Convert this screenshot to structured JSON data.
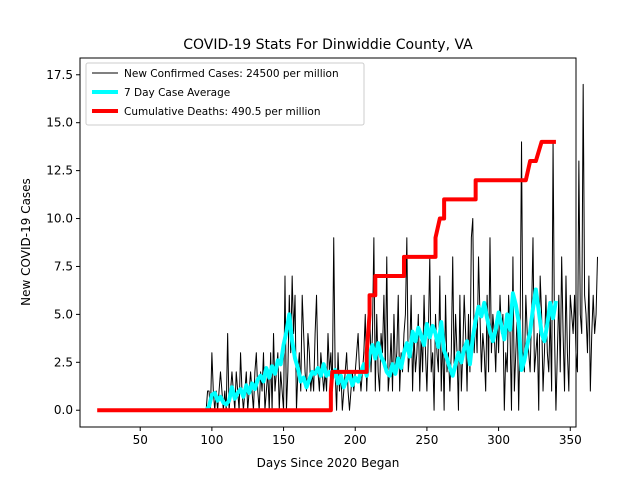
{
  "chart_data": {
    "type": "line",
    "title": "COVID-19 Stats For Dinwiddie County, VA",
    "xlabel": "Days Since 2020 Began",
    "ylabel": "New COVID-19 Cases",
    "xlim": [
      8,
      354
    ],
    "ylim": [
      -0.875,
      18.375
    ],
    "xticks": [
      50,
      100,
      150,
      200,
      250,
      300,
      350
    ],
    "yticks": [
      0.0,
      2.5,
      5.0,
      7.5,
      10.0,
      12.5,
      15.0,
      17.5
    ],
    "ytick_labels": [
      "0.0",
      "2.5",
      "5.0",
      "7.5",
      "10.0",
      "12.5",
      "15.0",
      "17.5"
    ],
    "grid": false,
    "legend_position": "top-left",
    "series": [
      {
        "name": "New Confirmed Cases: 24500 per million",
        "color": "#000000",
        "line_width": 1,
        "x_start": 96,
        "values": [
          0,
          1,
          1,
          0,
          3,
          1,
          0,
          1,
          0,
          1,
          2,
          1,
          0,
          1,
          0,
          4,
          0,
          1,
          2,
          1,
          0,
          2,
          1,
          0,
          3,
          1,
          0,
          1,
          2,
          0,
          1,
          2,
          1,
          0,
          2,
          3,
          1,
          0,
          2,
          1,
          3,
          0,
          1,
          2,
          0,
          3,
          0,
          4,
          1,
          2,
          3,
          0,
          2,
          1,
          0,
          7,
          0,
          2,
          6,
          3,
          7,
          4,
          6,
          0,
          2,
          3,
          1,
          6,
          4,
          2,
          1,
          4,
          3,
          1,
          2,
          1,
          4,
          6,
          2,
          1,
          3,
          2,
          1,
          2,
          1,
          4,
          2,
          3,
          1,
          9,
          2,
          0,
          3,
          1,
          2,
          0,
          1,
          2,
          3,
          1,
          0,
          1,
          2,
          1,
          2,
          3,
          4,
          2,
          1,
          2,
          3,
          5,
          1,
          3,
          6,
          2,
          4,
          9,
          1,
          5,
          2,
          1,
          4,
          3,
          6,
          2,
          8,
          1,
          2,
          4,
          1,
          5,
          2,
          3,
          6,
          1,
          3,
          2,
          4,
          5,
          9,
          2,
          3,
          6,
          1,
          4,
          2,
          3,
          5,
          1,
          4,
          2,
          6,
          3,
          1,
          4,
          8,
          2,
          3,
          0,
          5,
          3,
          2,
          7,
          1,
          4,
          0,
          6,
          2,
          3,
          1,
          3,
          8,
          2,
          5,
          3,
          0,
          6,
          1,
          3,
          6,
          4,
          1,
          5,
          2,
          9,
          10,
          3,
          5,
          3,
          8,
          5,
          2,
          4,
          3,
          1,
          6,
          2,
          9,
          3,
          5,
          4,
          2,
          5,
          3,
          6,
          4,
          5,
          0,
          3,
          2,
          6,
          4,
          0,
          8,
          1,
          3,
          5,
          0,
          4,
          14,
          3,
          2,
          6,
          4,
          3,
          2,
          5,
          9,
          2,
          3,
          4,
          0,
          7,
          5,
          1,
          3,
          6,
          3,
          2,
          5,
          1,
          14,
          4,
          0,
          3,
          6,
          2,
          8,
          4,
          1,
          7,
          3,
          1,
          6,
          5,
          4,
          6,
          3,
          2,
          13,
          5,
          4,
          17,
          6,
          5,
          3,
          7,
          1,
          4,
          6,
          4,
          5,
          8
        ]
      },
      {
        "name": "7 Day Case Average",
        "color": "#00ffff",
        "line_width": 4,
        "x": [
          96,
          98,
          100,
          102,
          104,
          106,
          108,
          110,
          112,
          114,
          116,
          118,
          120,
          122,
          124,
          126,
          128,
          130,
          132,
          134,
          136,
          138,
          140,
          142,
          144,
          146,
          148,
          150,
          152,
          154,
          156,
          158,
          160,
          162,
          164,
          166,
          168,
          170,
          172,
          174,
          176,
          178,
          180,
          182,
          184,
          186,
          188,
          190,
          192,
          194,
          196,
          198,
          200,
          202,
          204,
          206,
          208,
          210,
          212,
          214,
          216,
          218,
          220,
          222,
          224,
          226,
          228,
          230,
          232,
          234,
          236,
          238,
          240,
          242,
          244,
          246,
          248,
          250,
          252,
          254,
          256,
          258,
          260,
          262,
          264,
          266,
          268,
          270,
          272,
          274,
          276,
          278,
          280,
          282,
          284,
          286,
          288,
          290,
          292,
          294,
          296,
          298,
          300,
          302,
          304,
          306,
          308,
          310,
          312,
          314,
          316,
          318,
          320,
          322,
          324,
          326,
          328,
          330,
          332,
          334,
          336,
          338,
          340
        ],
        "values": [
          0,
          0.2,
          0.8,
          0.9,
          0.5,
          0.7,
          0.4,
          0.3,
          0.5,
          1.2,
          0.6,
          0.9,
          1.1,
          0.7,
          1.3,
          0.9,
          1.4,
          1.1,
          1.6,
          1.8,
          1.5,
          2.2,
          1.7,
          2.3,
          1.9,
          2.6,
          2.4,
          3.4,
          4.1,
          5.0,
          3.6,
          2.7,
          2.2,
          1.5,
          1.7,
          1.2,
          1.6,
          2.0,
          1.9,
          2.2,
          1.8,
          2.4,
          1.8,
          2.0,
          1.7,
          2.1,
          1.4,
          1.8,
          1.2,
          1.6,
          1.9,
          1.3,
          1.7,
          1.5,
          2.0,
          2.4,
          1.8,
          2.9,
          3.4,
          2.7,
          3.5,
          2.8,
          2.5,
          2.0,
          1.8,
          2.4,
          1.9,
          2.7,
          2.2,
          3.0,
          3.5,
          2.8,
          4.1,
          3.6,
          4.3,
          3.9,
          3.4,
          4.5,
          3.8,
          4.4,
          4.0,
          3.3,
          4.6,
          3.1,
          2.7,
          2.2,
          1.8,
          2.4,
          3.0,
          2.5,
          3.2,
          3.6,
          2.4,
          3.8,
          4.7,
          5.4,
          4.9,
          5.6,
          4.8,
          4.1,
          3.6,
          4.2,
          5.1,
          4.4,
          3.7,
          5.0,
          4.2,
          6.1,
          5.5,
          4.6,
          2.1,
          2.6,
          3.4,
          4.1,
          5.3,
          6.3,
          5.2,
          4.0,
          3.6,
          4.5,
          5.6,
          4.8,
          5.7
        ]
      },
      {
        "name": "Cumulative Deaths: 490.5 per million",
        "color": "#ff0000",
        "line_width": 4,
        "x": [
          20,
          183,
          183,
          184,
          208,
          208,
          209,
          210,
          210,
          212,
          214,
          214,
          215,
          234,
          234,
          236,
          256,
          256,
          259,
          262,
          262,
          284,
          284,
          286,
          319,
          319,
          322,
          326,
          326,
          330,
          340
        ],
        "values": [
          0,
          0,
          1,
          2,
          2,
          3,
          4,
          5,
          6,
          6,
          6,
          7,
          7,
          7,
          8,
          8,
          8,
          9,
          10,
          10,
          11,
          11,
          12,
          12,
          12,
          12,
          13,
          13,
          13,
          14,
          14
        ]
      }
    ]
  }
}
